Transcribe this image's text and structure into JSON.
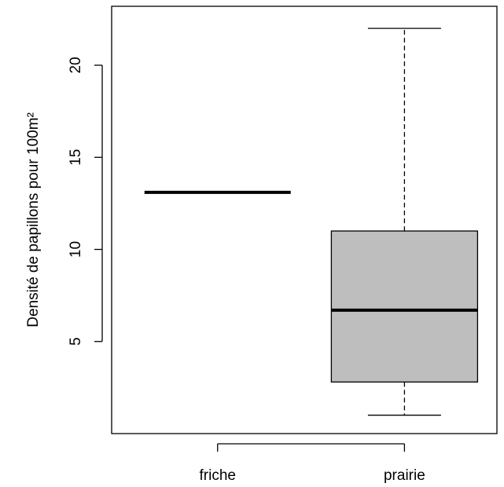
{
  "chart_data": {
    "type": "box",
    "title": "",
    "xlabel": "",
    "ylabel": "Densité de papillons pour 100m²",
    "ylim": [
      0,
      23.2
    ],
    "yticks": [
      5,
      10,
      15,
      20
    ],
    "categories": [
      "friche",
      "prairie"
    ],
    "boxes": [
      {
        "name": "friche",
        "whisker_low": 13.1,
        "q1": 13.1,
        "median": 13.1,
        "q3": 13.1,
        "whisker_high": 13.1
      },
      {
        "name": "prairie",
        "whisker_low": 1.0,
        "q1": 2.8,
        "median": 6.7,
        "q3": 11.0,
        "whisker_high": 22.0
      }
    ],
    "colors": {
      "box_fill": "#bebebe",
      "stroke": "#000000"
    },
    "grid": false,
    "legend": "none"
  }
}
